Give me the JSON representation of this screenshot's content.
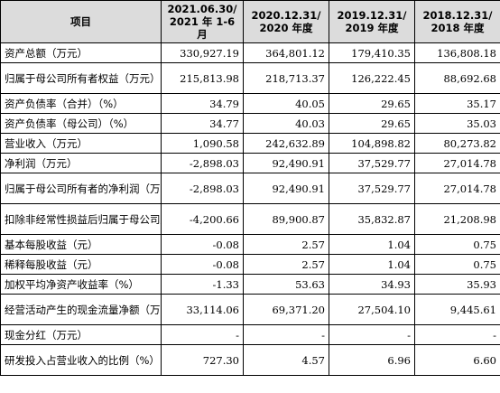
{
  "header": {
    "item": "项目",
    "col1": "2021.06.30/\n2021 年 1-6 月",
    "col2": "2020.12.31/\n2020 年度",
    "col3": "2019.12.31/\n2019 年度",
    "col4": "2018.12.31/\n2018 年度"
  },
  "rows": [
    {
      "label": "资产总额（万元）",
      "values": [
        "330,927.19",
        "364,801.12",
        "179,410.35",
        "136,808.18"
      ]
    },
    {
      "label": "归属于母公司所有者权益（万元）",
      "values": [
        "215,813.98",
        "218,713.37",
        "126,222.45",
        "88,692.68"
      ]
    },
    {
      "label": "资产负债率（合并）（%）",
      "values": [
        "34.79",
        "40.05",
        "29.65",
        "35.17"
      ]
    },
    {
      "label": "资产负债率（母公司）（%）",
      "values": [
        "34.77",
        "40.03",
        "29.65",
        "35.03"
      ]
    },
    {
      "label": "营业收入（万元）",
      "values": [
        "1,090.58",
        "242,632.89",
        "104,898.82",
        "80,273.82"
      ]
    },
    {
      "label": "净利润（万元）",
      "values": [
        "-2,898.03",
        "92,490.91",
        "37,529.77",
        "27,014.78"
      ]
    },
    {
      "label": "归属于母公司所有者的净利润（万元）",
      "values": [
        "-2,898.03",
        "92,490.91",
        "37,529.77",
        "27,014.78"
      ]
    },
    {
      "label": "扣除非经常性损益后归属于母公司所有者的净利润（万元）",
      "values": [
        "-4,200.66",
        "89,900.87",
        "35,832.87",
        "21,208.98"
      ]
    },
    {
      "label": "基本每股收益（元）",
      "values": [
        "-0.08",
        "2.57",
        "1.04",
        "0.75"
      ]
    },
    {
      "label": "稀释每股收益（元）",
      "values": [
        "-0.08",
        "2.57",
        "1.04",
        "0.75"
      ]
    },
    {
      "label": "加权平均净资产收益率（%）",
      "values": [
        "-1.33",
        "53.63",
        "34.93",
        "35.93"
      ]
    },
    {
      "label": "经营活动产生的现金流量净额（万元）",
      "values": [
        "33,114.06",
        "69,371.20",
        "27,504.10",
        "9,445.61"
      ]
    },
    {
      "label": "现金分红（万元）",
      "values": [
        "-",
        "-",
        "-",
        "-"
      ]
    },
    {
      "label": "研发投入占营业收入的比例（%）",
      "values": [
        "727.30",
        "4.57",
        "6.96",
        "6.60"
      ]
    }
  ]
}
